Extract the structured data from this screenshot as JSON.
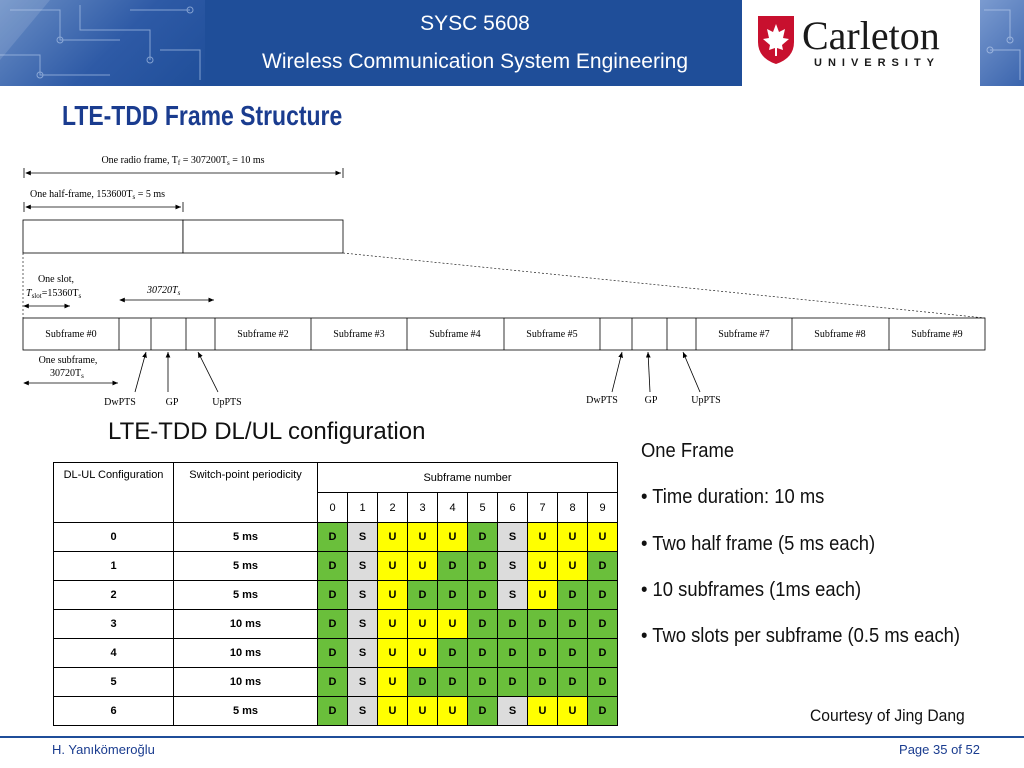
{
  "header": {
    "course": "SYSC 5608",
    "course_title": "Wireless Communication System Engineering",
    "logo_name": "Carleton",
    "logo_sub": "UNIVERSITY"
  },
  "slide_title": "LTE-TDD Frame Structure",
  "diagram": {
    "radio_frame": "One radio frame, T",
    "radio_frame_sub": "f",
    "radio_frame_rest": " = 307200T",
    "radio_frame_sub2": "s",
    "radio_frame_end": " = 10 ms",
    "half_frame": "One half-frame, 153600T",
    "half_frame_sub": "s",
    "half_frame_end": " = 5 ms",
    "slot_line1": "One slot,",
    "slot_t": "T",
    "slot_sub": "slot",
    "slot_rest": "=15360T",
    "slot_sub2": "s",
    "special_len": "30720T",
    "special_len_sub": "s",
    "subframe_line1": "One subframe,",
    "subframe_line2": "30720T",
    "subframe_line2_sub": "s",
    "subframes": [
      "Subframe #0",
      "Subframe #2",
      "Subframe #3",
      "Subframe #4",
      "Subframe #5",
      "Subframe #7",
      "Subframe #8",
      "Subframe #9"
    ],
    "special_fields": [
      "DwPTS",
      "GP",
      "UpPTS"
    ]
  },
  "config_title": "LTE-TDD DL/UL configuration",
  "table": {
    "col_config": "DL-UL Configuration",
    "col_period": "Switch-point periodicity",
    "col_subframe": "Subframe number",
    "subframe_numbers": [
      "0",
      "1",
      "2",
      "3",
      "4",
      "5",
      "6",
      "7",
      "8",
      "9"
    ],
    "rows": [
      {
        "config": "0",
        "period": "5 ms",
        "sf": [
          "D",
          "S",
          "U",
          "U",
          "U",
          "D",
          "S",
          "U",
          "U",
          "U"
        ]
      },
      {
        "config": "1",
        "period": "5 ms",
        "sf": [
          "D",
          "S",
          "U",
          "U",
          "D",
          "D",
          "S",
          "U",
          "U",
          "D"
        ]
      },
      {
        "config": "2",
        "period": "5 ms",
        "sf": [
          "D",
          "S",
          "U",
          "D",
          "D",
          "D",
          "S",
          "U",
          "D",
          "D"
        ]
      },
      {
        "config": "3",
        "period": "10 ms",
        "sf": [
          "D",
          "S",
          "U",
          "U",
          "U",
          "D",
          "D",
          "D",
          "D",
          "D"
        ]
      },
      {
        "config": "4",
        "period": "10 ms",
        "sf": [
          "D",
          "S",
          "U",
          "U",
          "D",
          "D",
          "D",
          "D",
          "D",
          "D"
        ]
      },
      {
        "config": "5",
        "period": "10 ms",
        "sf": [
          "D",
          "S",
          "U",
          "D",
          "D",
          "D",
          "D",
          "D",
          "D",
          "D"
        ]
      },
      {
        "config": "6",
        "period": "5 ms",
        "sf": [
          "D",
          "S",
          "U",
          "U",
          "U",
          "D",
          "S",
          "U",
          "U",
          "D"
        ]
      }
    ]
  },
  "notes": {
    "heading": "One Frame",
    "bullets": [
      "• Time duration: 10 ms",
      "• Two half frame (5 ms each)",
      "• 10 subframes (1ms each)",
      "• Two slots per subframe (0.5 ms each)"
    ],
    "courtesy": "Courtesy of Jing Dang"
  },
  "footer": {
    "author": "H. Yanıkömeroğlu",
    "page": "Page 35 of 52"
  },
  "colors": {
    "header_blue": "#1f4e99",
    "title_blue": "#1a3c8f",
    "downlink": "#6abf3b",
    "special": "#dcdcdc",
    "uplink": "#ffff00"
  }
}
